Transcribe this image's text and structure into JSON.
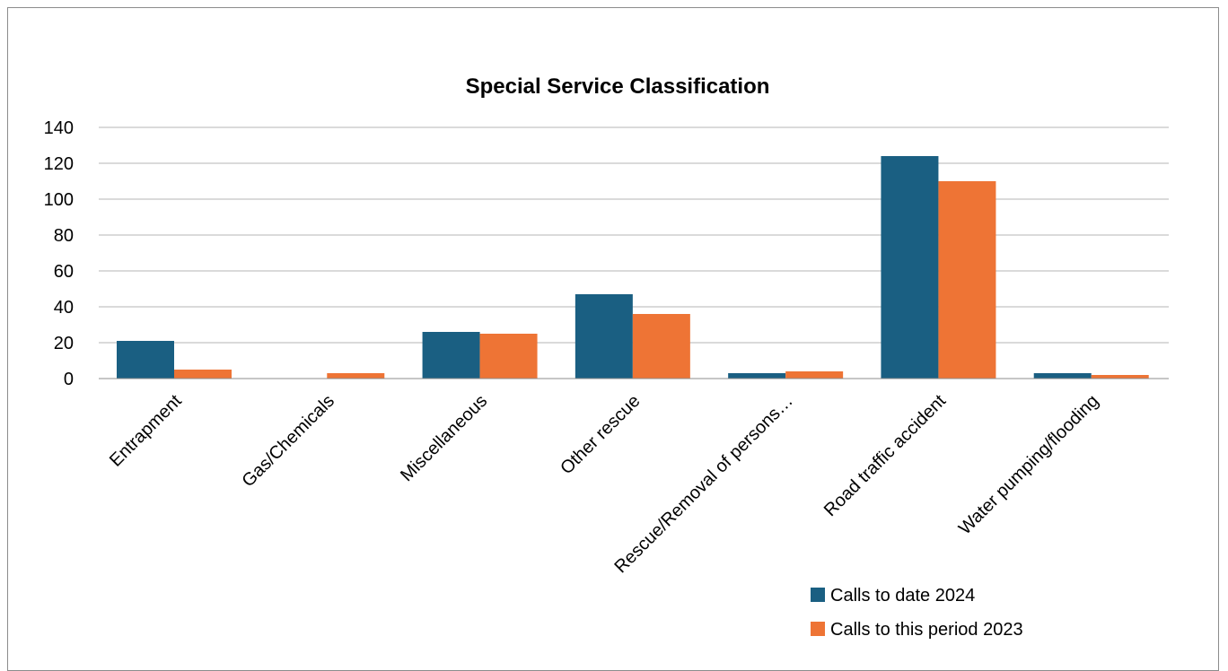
{
  "chart_data": {
    "type": "bar",
    "title": "Special Service Classification",
    "xlabel": "",
    "ylabel": "",
    "categories": [
      "Entrapment",
      "Gas/Chemicals",
      "Miscellaneous",
      "Other rescue",
      "Rescue/Removal of persons…",
      "Road traffic accident",
      "Water pumping/flooding"
    ],
    "series": [
      {
        "name": "Calls to date 2024",
        "color": "#1a5f82",
        "values": [
          21,
          0,
          26,
          47,
          3,
          124,
          3
        ]
      },
      {
        "name": "Calls to this period 2023",
        "color": "#ee7435",
        "values": [
          5,
          3,
          25,
          36,
          4,
          110,
          2
        ]
      }
    ],
    "ylim": [
      0,
      140
    ],
    "yticks": [
      0,
      20,
      40,
      60,
      80,
      100,
      120,
      140
    ],
    "grid": true,
    "legend": "bottom-right"
  }
}
